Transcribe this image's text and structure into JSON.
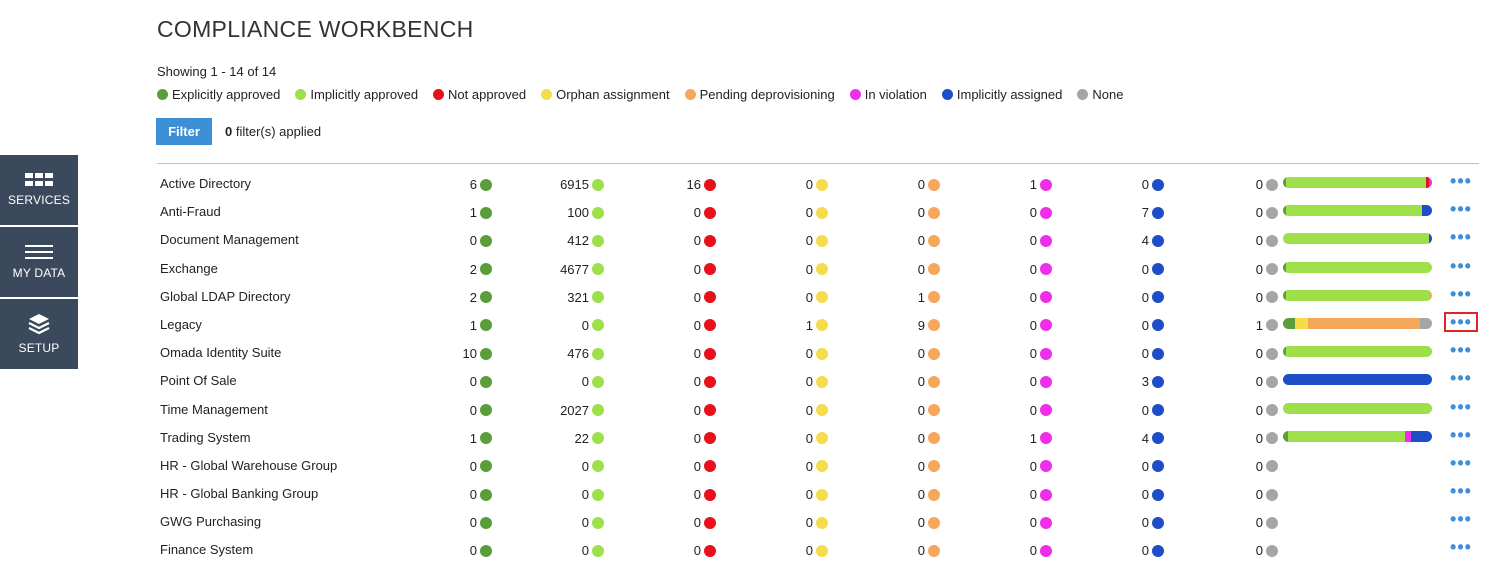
{
  "nav": [
    {
      "label": "SERVICES",
      "icon": "grid-icon"
    },
    {
      "label": "MY DATA",
      "icon": "menu-lines-icon"
    },
    {
      "label": "SETUP",
      "icon": "layers-icon"
    }
  ],
  "title": "COMPLIANCE WORKBENCH",
  "showing": "Showing 1 - 14 of 14",
  "legend": [
    {
      "label": "Explicitly approved",
      "color": "#5a9e3a"
    },
    {
      "label": "Implicitly approved",
      "color": "#9ee04a"
    },
    {
      "label": "Not approved",
      "color": "#e8101a"
    },
    {
      "label": "Orphan assignment",
      "color": "#f5dc4a"
    },
    {
      "label": "Pending deprovisioning",
      "color": "#f5a85a"
    },
    {
      "label": "In violation",
      "color": "#ee2ee8"
    },
    {
      "label": "Implicitly assigned",
      "color": "#1d4ec8"
    },
    {
      "label": "None",
      "color": "#a5a5a5"
    }
  ],
  "filter": {
    "button_label": "Filter",
    "count": "0",
    "suffix": " filter(s) applied"
  },
  "more_label": "•••",
  "rows": [
    {
      "name": "Active Directory",
      "values": [
        "6",
        "6915",
        "16",
        "0",
        "0",
        "1",
        "0",
        "0"
      ]
    },
    {
      "name": "Anti-Fraud",
      "values": [
        "1",
        "100",
        "0",
        "0",
        "0",
        "0",
        "7",
        "0"
      ]
    },
    {
      "name": "Document Management",
      "values": [
        "0",
        "412",
        "0",
        "0",
        "0",
        "0",
        "4",
        "0"
      ]
    },
    {
      "name": "Exchange",
      "values": [
        "2",
        "4677",
        "0",
        "0",
        "0",
        "0",
        "0",
        "0"
      ]
    },
    {
      "name": "Global LDAP Directory",
      "values": [
        "2",
        "321",
        "0",
        "0",
        "1",
        "0",
        "0",
        "0"
      ]
    },
    {
      "name": "Legacy",
      "values": [
        "1",
        "0",
        "0",
        "1",
        "9",
        "0",
        "0",
        "1"
      ]
    },
    {
      "name": "Omada Identity Suite",
      "values": [
        "10",
        "476",
        "0",
        "0",
        "0",
        "0",
        "0",
        "0"
      ]
    },
    {
      "name": "Point Of Sale",
      "values": [
        "0",
        "0",
        "0",
        "0",
        "0",
        "0",
        "3",
        "0"
      ]
    },
    {
      "name": "Time Management",
      "values": [
        "0",
        "2027",
        "0",
        "0",
        "0",
        "0",
        "0",
        "0"
      ]
    },
    {
      "name": "Trading System",
      "values": [
        "1",
        "22",
        "0",
        "0",
        "0",
        "1",
        "4",
        "0"
      ]
    },
    {
      "name": "HR - Global Warehouse Group",
      "values": [
        "0",
        "0",
        "0",
        "0",
        "0",
        "0",
        "0",
        "0"
      ]
    },
    {
      "name": "HR - Global Banking Group",
      "values": [
        "0",
        "0",
        "0",
        "0",
        "0",
        "0",
        "0",
        "0"
      ]
    },
    {
      "name": "GWG Purchasing",
      "values": [
        "0",
        "0",
        "0",
        "0",
        "0",
        "0",
        "0",
        "0"
      ]
    },
    {
      "name": "Finance System",
      "values": [
        "0",
        "0",
        "0",
        "0",
        "0",
        "0",
        "0",
        "0"
      ]
    }
  ],
  "highlighted_row": "Legacy"
}
